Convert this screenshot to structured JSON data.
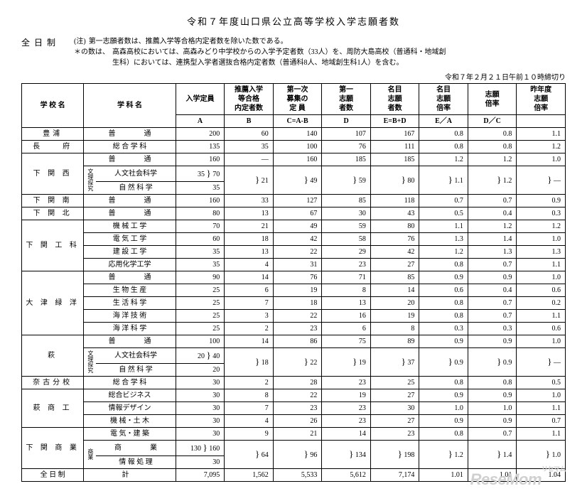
{
  "title": "令和７年度山口県公立高等学校入学志願者数",
  "fulltime_label": "全日制",
  "notes": {
    "label1": "(注)",
    "line1": "第一志願者数は、推薦入学等合格内定者数を除いた数である。",
    "label2": "＊の数は、",
    "line2a": "高森高校においては、高森みどり中学校からの入学予定者数（33人）を、周防大島高校（普通科・地域創",
    "line2b": "生科）においては、連携型入学者選抜合格内定者数（普通科8人、地域創生科1人）を含む。"
  },
  "timestamp": "令和７年２月２１日午前１０時締切り",
  "headers": {
    "school": "学 校 名",
    "dept": "学 科 名",
    "A": "入学定員",
    "B": "推薦入学\n等合格\n内定者数",
    "C": "第一次\n募集の\n定  員",
    "D": "第一\n志願\n者数",
    "E": "名目\n志願\n者数",
    "F": "名目\n志願\n倍率",
    "G": "志願\n倍率",
    "H": "昨年度\n志願\n倍率",
    "subA": "A",
    "subB": "B",
    "subC": "C=A-B",
    "subD": "D",
    "subE": "E=B+D",
    "subF": "E／A",
    "subG": "D／C",
    "subH": ""
  },
  "rows": [
    {
      "school": "豊浦",
      "dept": "普　　　　通",
      "A": "200",
      "B": "60",
      "C": "140",
      "D": "107",
      "E": "167",
      "F": "0.8",
      "G": "0.8",
      "H": "1.1"
    },
    {
      "school": "長　　府",
      "dept": "総 合 学 科",
      "A": "135",
      "B": "35",
      "C": "100",
      "D": "76",
      "E": "111",
      "F": "0.8",
      "G": "0.8",
      "H": "1.2"
    },
    {
      "school": "下 関 西",
      "rowspan": 3,
      "dept": "普　　　　通",
      "A": "160",
      "B": "—",
      "C": "160",
      "D": "185",
      "E": "185",
      "F": "1.2",
      "G": "1.2",
      "H": "1.0"
    },
    {
      "dept": "人文社会科学",
      "sub": "文理探究",
      "A": "35",
      "Am": "70",
      "B": "21",
      "C": "49",
      "D": "59",
      "E": "80",
      "F": "1.1",
      "G": "1.2",
      "H": "—",
      "brace": true
    },
    {
      "dept": "自 然 科 学",
      "A": "35"
    },
    {
      "school": "下 関 南",
      "dept": "普　　　　通",
      "A": "160",
      "B": "33",
      "C": "127",
      "D": "85",
      "E": "118",
      "F": "0.7",
      "G": "0.7",
      "H": "0.9"
    },
    {
      "school": "下 関 北",
      "dept": "普　　　　通",
      "A": "80",
      "B": "13",
      "C": "67",
      "D": "30",
      "E": "43",
      "F": "0.5",
      "G": "0.4",
      "H": "0.3"
    },
    {
      "school": "下 関 工 科",
      "rowspan": 4,
      "dept": "機 械 工 学",
      "A": "70",
      "B": "21",
      "C": "49",
      "D": "59",
      "E": "80",
      "F": "1.1",
      "G": "1.2",
      "H": "1.2"
    },
    {
      "dept": "電 気 工 学",
      "A": "60",
      "B": "18",
      "C": "42",
      "D": "58",
      "E": "76",
      "F": "1.3",
      "G": "1.4",
      "H": "1.0"
    },
    {
      "dept": "建 設 工 学",
      "A": "35",
      "B": "13",
      "C": "22",
      "D": "29",
      "E": "42",
      "F": "1.2",
      "G": "1.3",
      "H": "1.3"
    },
    {
      "dept": "応用化学工学",
      "A": "35",
      "B": "4",
      "C": "31",
      "D": "23",
      "E": "27",
      "F": "0.8",
      "G": "0.7",
      "H": "1.1"
    },
    {
      "school": "大 津 緑 洋",
      "rowspan": 5,
      "dept": "普　　　　通",
      "A": "90",
      "B": "14",
      "C": "76",
      "D": "71",
      "E": "85",
      "F": "0.9",
      "G": "0.9",
      "H": "1.0"
    },
    {
      "dept": "生 物 生 産",
      "A": "25",
      "B": "6",
      "C": "19",
      "D": "8",
      "E": "14",
      "F": "0.6",
      "G": "0.4",
      "H": "0.6"
    },
    {
      "dept": "生 活 科 学",
      "A": "25",
      "B": "7",
      "C": "18",
      "D": "13",
      "E": "20",
      "F": "0.8",
      "G": "0.7",
      "H": "0.2"
    },
    {
      "dept": "海 洋 技 術",
      "A": "25",
      "B": "3",
      "C": "22",
      "D": "16",
      "E": "19",
      "F": "0.8",
      "G": "0.7",
      "H": "1.1"
    },
    {
      "dept": "海 洋 科 学",
      "A": "25",
      "B": "2",
      "C": "23",
      "D": "6",
      "E": "8",
      "F": "0.3",
      "G": "0.3",
      "H": "0.6"
    },
    {
      "school": "萩",
      "rowspan": 3,
      "dept": "普　　　　通",
      "A": "100",
      "B": "14",
      "C": "86",
      "D": "75",
      "E": "89",
      "F": "0.9",
      "G": "0.9",
      "H": "1.0"
    },
    {
      "dept": "人文社会科学",
      "sub": "文理探究",
      "A": "20",
      "Am": "40",
      "B": "18",
      "C": "22",
      "D": "19",
      "E": "37",
      "F": "0.9",
      "G": "0.9",
      "H": "—",
      "brace": true
    },
    {
      "dept": "自 然 科 学",
      "A": "20"
    },
    {
      "school": "奈古分校",
      "dept": "総 合 学 科",
      "A": "30",
      "B": "2",
      "C": "28",
      "D": "23",
      "E": "25",
      "F": "0.8",
      "G": "0.8",
      "H": "0.5"
    },
    {
      "school": "萩 商 工",
      "rowspan": 3,
      "dept": "総合ビジネス",
      "A": "30",
      "B": "8",
      "C": "22",
      "D": "19",
      "E": "27",
      "F": "0.9",
      "G": "0.9",
      "H": "1.0"
    },
    {
      "dept": "情報デザイン",
      "A": "30",
      "B": "7",
      "C": "23",
      "D": "23",
      "E": "30",
      "F": "1.0",
      "G": "1.0",
      "H": "1.1"
    },
    {
      "dept": "機 械・土 木",
      "A": "30",
      "B": "4",
      "C": "26",
      "D": "23",
      "E": "27",
      "F": "0.9",
      "G": "0.9",
      "H": "0.7"
    },
    {
      "school": "下 関 商 業",
      "rowspan": 3,
      "dept": "電 気・建 築",
      "A": "30",
      "B": "9",
      "C": "21",
      "D": "14",
      "E": "23",
      "F": "0.8",
      "G": "0.7",
      "H": "1.1"
    },
    {
      "dept": "商　　　　業",
      "sub": "商業",
      "A": "130",
      "Am": "160",
      "B": "64",
      "C": "96",
      "D": "134",
      "E": "198",
      "F": "1.2",
      "G": "1.4",
      "H": "1.0",
      "brace": true
    },
    {
      "dept": "情 報 処 理",
      "A": "30"
    }
  ],
  "total": {
    "label": "全 日 制",
    "dept": "計",
    "A": "7,095",
    "B": "1,562",
    "C": "5,533",
    "D": "5,612",
    "E": "7,174",
    "F": "1.01",
    "G": "1.01",
    "H": "1.04"
  },
  "logo": "ReseMom"
}
